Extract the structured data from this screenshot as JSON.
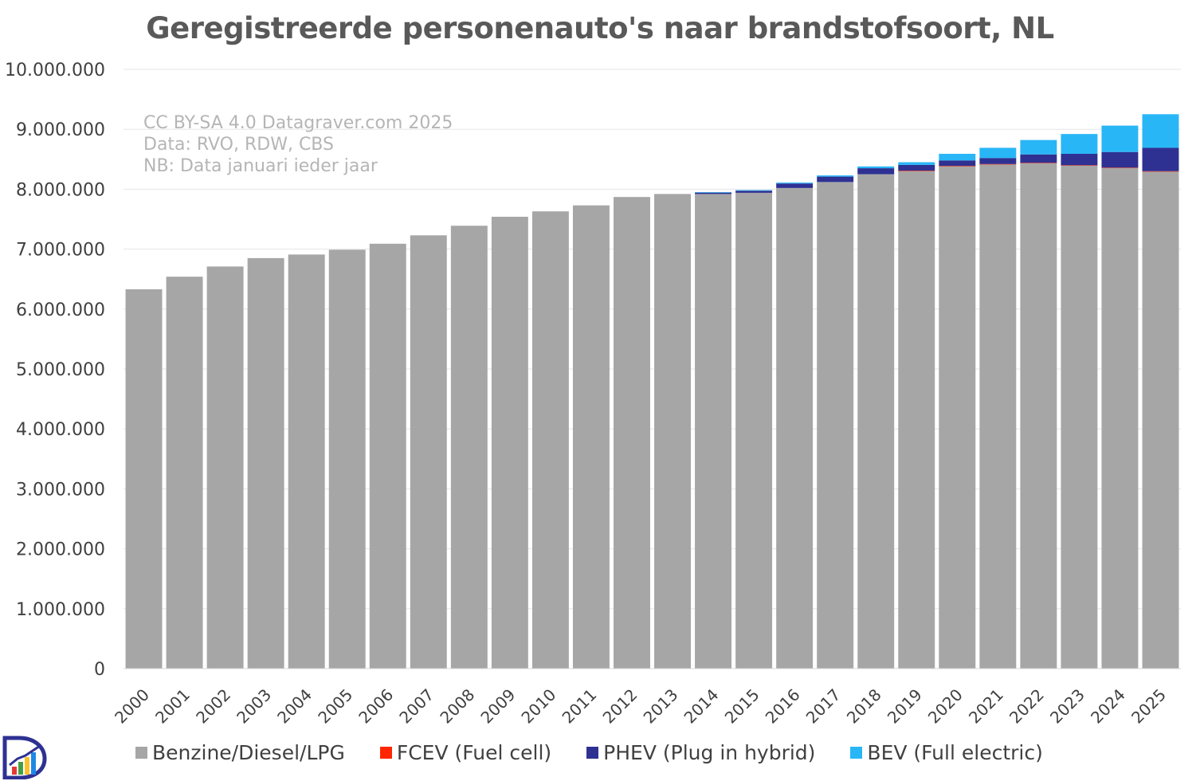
{
  "chart_data": {
    "type": "bar",
    "stacked": true,
    "title": "Geregistreerde personenauto's naar brandstofsoort, NL",
    "annotations": [
      "CC BY-SA 4.0 Datagraver.com 2025",
      "Data: RVO, RDW, CBS",
      "NB: Data januari ieder jaar"
    ],
    "categories": [
      "2000",
      "2001",
      "2002",
      "2003",
      "2004",
      "2005",
      "2006",
      "2007",
      "2008",
      "2009",
      "2010",
      "2011",
      "2012",
      "2013",
      "2014",
      "2015",
      "2016",
      "2017",
      "2018",
      "2019",
      "2020",
      "2021",
      "2022",
      "2023",
      "2024",
      "2025"
    ],
    "ylim": [
      0,
      10000000
    ],
    "yticks": [
      0,
      1000000,
      2000000,
      3000000,
      4000000,
      5000000,
      6000000,
      7000000,
      8000000,
      9000000,
      10000000
    ],
    "ytick_labels": [
      "0",
      "1.000.000",
      "2.000.000",
      "3.000.000",
      "4.000.000",
      "5.000.000",
      "6.000.000",
      "7.000.000",
      "8.000.000",
      "9.000.000",
      "10.000.000"
    ],
    "grid": true,
    "legend_position": "bottom",
    "series": [
      {
        "name": "Benzine/Diesel/LPG",
        "color": "#a6a6a6",
        "values": [
          6330000,
          6540000,
          6710000,
          6850000,
          6910000,
          6990000,
          7090000,
          7230000,
          7390000,
          7540000,
          7630000,
          7730000,
          7870000,
          7920000,
          7920000,
          7940000,
          8020000,
          8120000,
          8250000,
          8310000,
          8390000,
          8420000,
          8440000,
          8400000,
          8360000,
          8300000
        ]
      },
      {
        "name": "FCEV (Fuel cell)",
        "color": "#ff2600",
        "values": [
          0,
          0,
          0,
          0,
          0,
          0,
          0,
          0,
          0,
          0,
          0,
          0,
          0,
          0,
          0,
          0,
          0,
          0,
          0,
          300,
          400,
          500,
          600,
          800,
          900,
          1000
        ]
      },
      {
        "name": "PHEV (Plug in hybrid)",
        "color": "#2e3192",
        "values": [
          0,
          0,
          0,
          0,
          0,
          0,
          0,
          0,
          0,
          0,
          0,
          0,
          0,
          0,
          25000,
          35000,
          75000,
          90000,
          100000,
          95000,
          90000,
          100000,
          140000,
          190000,
          260000,
          390000
        ]
      },
      {
        "name": "BEV (Full electric)",
        "color": "#29b6f6",
        "values": [
          0,
          0,
          0,
          0,
          0,
          0,
          0,
          0,
          0,
          0,
          0,
          0,
          0,
          0,
          5000,
          10000,
          15000,
          20000,
          30000,
          45000,
          110000,
          170000,
          240000,
          330000,
          440000,
          560000
        ]
      }
    ]
  }
}
